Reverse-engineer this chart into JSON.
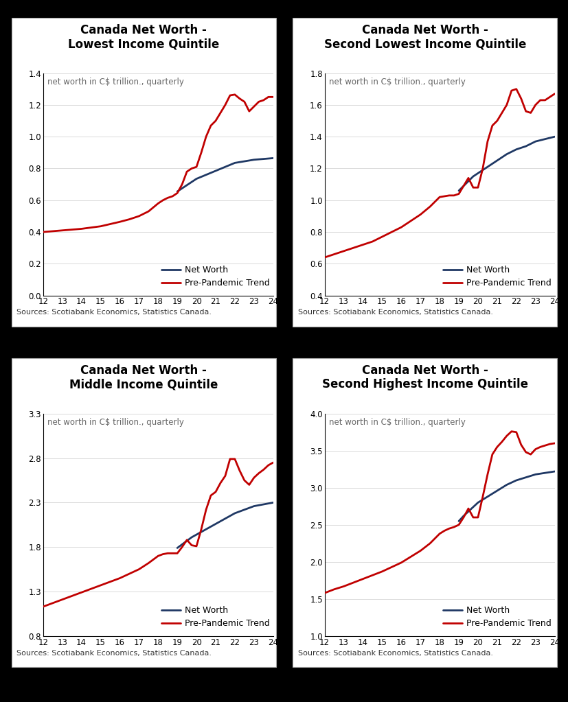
{
  "charts": [
    {
      "title": "Canada Net Worth -\nLowest Income Quintile",
      "subtitle": "net worth in C$ trillion., quarterly",
      "ylim": [
        0.0,
        1.4
      ],
      "yticks": [
        0.0,
        0.2,
        0.4,
        0.6,
        0.8,
        1.0,
        1.2,
        1.4
      ],
      "net_worth_x": [
        19,
        19.25,
        19.5,
        19.75,
        20,
        20.5,
        21,
        21.5,
        22,
        22.5,
        23,
        23.5,
        24
      ],
      "net_worth_y": [
        0.655,
        0.675,
        0.695,
        0.715,
        0.735,
        0.76,
        0.785,
        0.81,
        0.835,
        0.845,
        0.855,
        0.86,
        0.865
      ],
      "trend_x": [
        12,
        12.5,
        13,
        13.5,
        14,
        14.5,
        15,
        15.5,
        16,
        16.5,
        17,
        17.5,
        18,
        18.25,
        18.5,
        18.75,
        19,
        19.25,
        19.5,
        19.75,
        20,
        20.25,
        20.5,
        20.75,
        21,
        21.25,
        21.5,
        21.75,
        22,
        22.25,
        22.5,
        22.75,
        23,
        23.25,
        23.5,
        23.75,
        24
      ],
      "trend_y": [
        0.4,
        0.405,
        0.41,
        0.415,
        0.42,
        0.428,
        0.436,
        0.45,
        0.464,
        0.48,
        0.5,
        0.53,
        0.58,
        0.6,
        0.615,
        0.625,
        0.645,
        0.7,
        0.78,
        0.8,
        0.81,
        0.9,
        1.0,
        1.07,
        1.1,
        1.15,
        1.2,
        1.26,
        1.265,
        1.24,
        1.22,
        1.16,
        1.19,
        1.22,
        1.23,
        1.25,
        1.25
      ],
      "source": "Sources: Scotiabank Economics, Statistics Canada."
    },
    {
      "title": "Canada Net Worth -\nSecond Lowest Income Quintile",
      "subtitle": "net worth in C$ trillion., quarterly",
      "ylim": [
        0.4,
        1.8
      ],
      "yticks": [
        0.4,
        0.6,
        0.8,
        1.0,
        1.2,
        1.4,
        1.6,
        1.8
      ],
      "net_worth_x": [
        19,
        19.25,
        19.5,
        19.75,
        20,
        20.5,
        21,
        21.5,
        22,
        22.5,
        23,
        23.5,
        24
      ],
      "net_worth_y": [
        1.06,
        1.09,
        1.12,
        1.15,
        1.17,
        1.21,
        1.25,
        1.29,
        1.32,
        1.34,
        1.37,
        1.385,
        1.4
      ],
      "trend_x": [
        12,
        12.5,
        13,
        13.5,
        14,
        14.5,
        15,
        15.5,
        16,
        16.5,
        17,
        17.5,
        18,
        18.25,
        18.5,
        18.75,
        19,
        19.25,
        19.5,
        19.75,
        20,
        20.25,
        20.5,
        20.75,
        21,
        21.25,
        21.5,
        21.75,
        22,
        22.25,
        22.5,
        22.75,
        23,
        23.25,
        23.5,
        23.75,
        24
      ],
      "trend_y": [
        0.64,
        0.66,
        0.68,
        0.7,
        0.72,
        0.74,
        0.77,
        0.8,
        0.83,
        0.87,
        0.91,
        0.96,
        1.02,
        1.025,
        1.03,
        1.03,
        1.04,
        1.09,
        1.14,
        1.08,
        1.08,
        1.2,
        1.37,
        1.47,
        1.5,
        1.55,
        1.6,
        1.69,
        1.7,
        1.64,
        1.56,
        1.55,
        1.6,
        1.63,
        1.63,
        1.65,
        1.67
      ],
      "source": "Sources: Scotiabank Economics, Statistics Canada."
    },
    {
      "title": "Canada Net Worth -\nMiddle Income Quintile",
      "subtitle": "net worth in C$ trillion., quarterly",
      "ylim": [
        0.8,
        3.3
      ],
      "yticks": [
        0.8,
        1.3,
        1.8,
        2.3,
        2.8,
        3.3
      ],
      "net_worth_x": [
        19,
        19.25,
        19.5,
        19.75,
        20,
        20.5,
        21,
        21.5,
        22,
        22.5,
        23,
        23.5,
        24
      ],
      "net_worth_y": [
        1.79,
        1.83,
        1.87,
        1.91,
        1.94,
        2.0,
        2.06,
        2.12,
        2.18,
        2.22,
        2.26,
        2.28,
        2.3
      ],
      "trend_x": [
        12,
        12.5,
        13,
        13.5,
        14,
        14.5,
        15,
        15.5,
        16,
        16.5,
        17,
        17.5,
        18,
        18.25,
        18.5,
        18.75,
        19,
        19.25,
        19.5,
        19.75,
        20,
        20.25,
        20.5,
        20.75,
        21,
        21.25,
        21.5,
        21.75,
        22,
        22.25,
        22.5,
        22.75,
        23,
        23.25,
        23.5,
        23.75,
        24
      ],
      "trend_y": [
        1.13,
        1.17,
        1.21,
        1.25,
        1.29,
        1.33,
        1.37,
        1.41,
        1.45,
        1.5,
        1.55,
        1.62,
        1.7,
        1.72,
        1.73,
        1.73,
        1.73,
        1.8,
        1.88,
        1.82,
        1.81,
        2.0,
        2.22,
        2.38,
        2.42,
        2.52,
        2.6,
        2.79,
        2.79,
        2.66,
        2.55,
        2.5,
        2.58,
        2.63,
        2.67,
        2.72,
        2.75
      ],
      "source": "Sources: Scotiabank Economics, Statistics Canada."
    },
    {
      "title": "Canada Net Worth -\nSecond Highest Income Quintile",
      "subtitle": "net worth in C$ trillion., quarterly",
      "ylim": [
        1.0,
        4.0
      ],
      "yticks": [
        1.0,
        1.5,
        2.0,
        2.5,
        3.0,
        3.5,
        4.0
      ],
      "net_worth_x": [
        19,
        19.25,
        19.5,
        19.75,
        20,
        20.5,
        21,
        21.5,
        22,
        22.5,
        23,
        23.5,
        24
      ],
      "net_worth_y": [
        2.55,
        2.62,
        2.68,
        2.74,
        2.8,
        2.88,
        2.96,
        3.04,
        3.1,
        3.14,
        3.18,
        3.2,
        3.22
      ],
      "trend_x": [
        12,
        12.5,
        13,
        13.5,
        14,
        14.5,
        15,
        15.5,
        16,
        16.5,
        17,
        17.5,
        18,
        18.25,
        18.5,
        18.75,
        19,
        19.25,
        19.5,
        19.75,
        20,
        20.25,
        20.5,
        20.75,
        21,
        21.25,
        21.5,
        21.75,
        22,
        22.25,
        22.5,
        22.75,
        23,
        23.25,
        23.5,
        23.75,
        24
      ],
      "trend_y": [
        1.58,
        1.63,
        1.67,
        1.72,
        1.77,
        1.82,
        1.87,
        1.93,
        1.99,
        2.07,
        2.15,
        2.25,
        2.38,
        2.42,
        2.45,
        2.47,
        2.5,
        2.6,
        2.72,
        2.6,
        2.6,
        2.88,
        3.18,
        3.45,
        3.55,
        3.62,
        3.7,
        3.76,
        3.75,
        3.58,
        3.48,
        3.45,
        3.52,
        3.55,
        3.57,
        3.59,
        3.6
      ],
      "source": "Sources: Scotiabank Economics, Statistics Canada."
    }
  ],
  "net_worth_color": "#1f3864",
  "trend_color": "#c00000",
  "background_color": "#ffffff",
  "outer_background": "#000000",
  "panel_background": "#ffffff",
  "net_worth_lw": 2.0,
  "trend_lw": 2.0,
  "title_fontsize": 12,
  "subtitle_fontsize": 8.5,
  "tick_fontsize": 8.5,
  "source_fontsize": 8,
  "legend_fontsize": 9,
  "xticks": [
    12,
    13,
    14,
    15,
    16,
    17,
    18,
    19,
    20,
    21,
    22,
    23,
    24
  ]
}
